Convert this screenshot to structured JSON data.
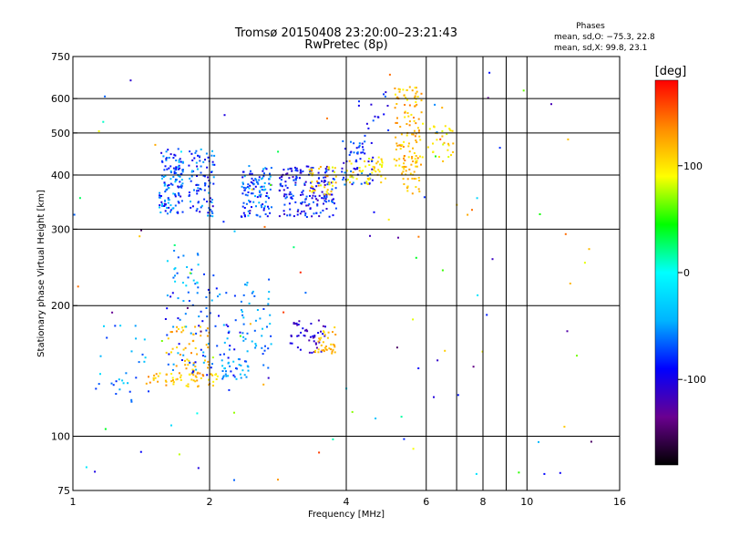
{
  "chart_data": {
    "type": "scatter",
    "title": "Tromsø 20150408 23:20:00–23:21:43",
    "subtitle": "RwPretec (8p)",
    "xlabel": "Frequency [MHz]",
    "ylabel": "Stationary phase Virtual Height [km]",
    "x_scale": "log",
    "y_scale": "log",
    "xlim": [
      1,
      16
    ],
    "ylim": [
      75,
      750
    ],
    "x_ticks": [
      1,
      2,
      4,
      6,
      8,
      10,
      16
    ],
    "x_tick_labels": [
      "1",
      "2",
      "4",
      "6",
      "8",
      "10",
      "16"
    ],
    "y_ticks": [
      75,
      100,
      200,
      300,
      400,
      500,
      600,
      750
    ],
    "y_tick_labels": [
      "75",
      "100",
      "200",
      "300",
      "400",
      "500",
      "600",
      "750"
    ],
    "x_grid": [
      1,
      2,
      4,
      6,
      7,
      8,
      9,
      10,
      16
    ],
    "y_grid": [
      100,
      200,
      300,
      400,
      500,
      600
    ],
    "phases_title": "Phases",
    "phases_lines": [
      "mean, sd,O: −75.3, 22.8",
      "mean, sd,X:  99.8, 23.1"
    ],
    "colorbar": {
      "label": "[deg]",
      "range": [
        -180,
        180
      ],
      "ticks": [
        100,
        0,
        -100
      ],
      "tick_labels": [
        "100",
        "0",
        "-100"
      ],
      "colors": [
        "#000000",
        "#6a0090",
        "#0000ff",
        "#00b4ff",
        "#00ffff",
        "#00ff00",
        "#ffff00",
        "#ff8c00",
        "#ff0000"
      ]
    },
    "clusters": [
      {
        "x": [
          1.55,
          1.75
        ],
        "y": [
          325,
          460
        ],
        "phase": [
          -110,
          -30
        ],
        "n": 130
      },
      {
        "x": [
          1.8,
          2.05
        ],
        "y": [
          320,
          460
        ],
        "phase": [
          -110,
          -40
        ],
        "n": 90
      },
      {
        "x": [
          2.35,
          2.75
        ],
        "y": [
          320,
          420
        ],
        "phase": [
          -100,
          -40
        ],
        "n": 110
      },
      {
        "x": [
          2.85,
          3.8
        ],
        "y": [
          320,
          420
        ],
        "phase": [
          -120,
          -60
        ],
        "n": 180
      },
      {
        "x": [
          3.3,
          3.8
        ],
        "y": [
          360,
          420
        ],
        "phase": [
          80,
          140
        ],
        "n": 40
      },
      {
        "x": [
          3.9,
          4.6
        ],
        "y": [
          380,
          480
        ],
        "phase": [
          -110,
          -50
        ],
        "n": 60
      },
      {
        "x": [
          4.0,
          4.9
        ],
        "y": [
          380,
          440
        ],
        "phase": [
          80,
          120
        ],
        "n": 50
      },
      {
        "x": [
          5.1,
          5.9
        ],
        "y": [
          420,
          640
        ],
        "phase": [
          90,
          140
        ],
        "n": 110
      },
      {
        "x": [
          5.3,
          5.8
        ],
        "y": [
          360,
          420
        ],
        "phase": [
          100,
          130
        ],
        "n": 30
      },
      {
        "x": [
          6.0,
          6.9
        ],
        "y": [
          430,
          520
        ],
        "phase": [
          80,
          120
        ],
        "n": 30
      },
      {
        "x": [
          4.2,
          5.0
        ],
        "y": [
          480,
          640
        ],
        "phase": [
          -110,
          -60
        ],
        "n": 15
      },
      {
        "x": [
          1.45,
          2.1
        ],
        "y": [
          130,
          140
        ],
        "phase": [
          90,
          140
        ],
        "n": 60
      },
      {
        "x": [
          1.6,
          2.0
        ],
        "y": [
          140,
          180
        ],
        "phase": [
          100,
          140
        ],
        "n": 50
      },
      {
        "x": [
          1.6,
          2.4
        ],
        "y": [
          135,
          220
        ],
        "phase": [
          -100,
          -40
        ],
        "n": 90
      },
      {
        "x": [
          1.6,
          2.1
        ],
        "y": [
          220,
          270
        ],
        "phase": [
          -80,
          -20
        ],
        "n": 25
      },
      {
        "x": [
          2.35,
          2.75
        ],
        "y": [
          140,
          230
        ],
        "phase": [
          -80,
          -30
        ],
        "n": 45
      },
      {
        "x": [
          2.1,
          2.45
        ],
        "y": [
          135,
          150
        ],
        "phase": [
          -70,
          -30
        ],
        "n": 25
      },
      {
        "x": [
          1.1,
          1.45
        ],
        "y": [
          120,
          180
        ],
        "phase": [
          -80,
          -20
        ],
        "n": 30
      },
      {
        "x": [
          3.0,
          3.6
        ],
        "y": [
          155,
          185
        ],
        "phase": [
          -130,
          -90
        ],
        "n": 45
      },
      {
        "x": [
          3.4,
          3.8
        ],
        "y": [
          155,
          175
        ],
        "phase": [
          100,
          130
        ],
        "n": 35
      },
      {
        "x": [
          1.0,
          14.0
        ],
        "y": [
          78,
          700
        ],
        "phase": [
          -150,
          170
        ],
        "n": 110
      }
    ]
  }
}
